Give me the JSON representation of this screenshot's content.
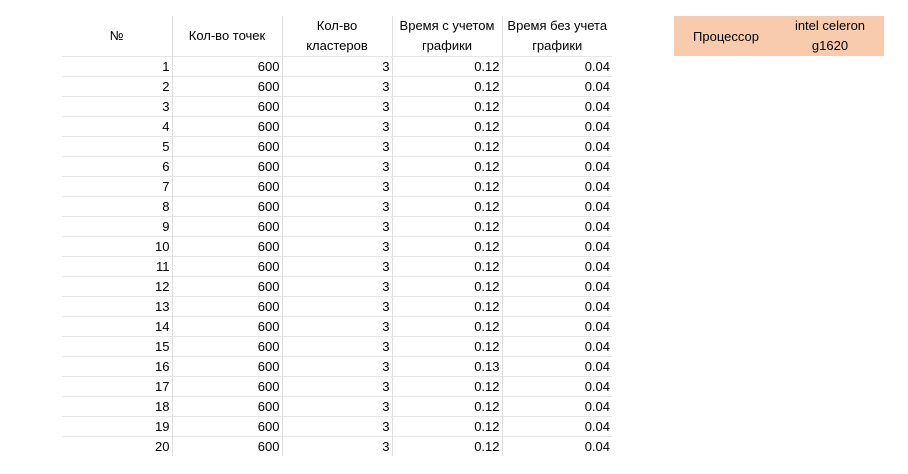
{
  "table": {
    "headers": [
      "№",
      "Кол-во точек",
      "Кол-во кластеров",
      "Время с учетом графики",
      "Время без учета графики"
    ],
    "rows": [
      [
        "1",
        "600",
        "3",
        "0.12",
        "0.04"
      ],
      [
        "2",
        "600",
        "3",
        "0.12",
        "0.04"
      ],
      [
        "3",
        "600",
        "3",
        "0.12",
        "0.04"
      ],
      [
        "4",
        "600",
        "3",
        "0.12",
        "0.04"
      ],
      [
        "5",
        "600",
        "3",
        "0.12",
        "0.04"
      ],
      [
        "6",
        "600",
        "3",
        "0.12",
        "0.04"
      ],
      [
        "7",
        "600",
        "3",
        "0.12",
        "0.04"
      ],
      [
        "8",
        "600",
        "3",
        "0.12",
        "0.04"
      ],
      [
        "9",
        "600",
        "3",
        "0.12",
        "0.04"
      ],
      [
        "10",
        "600",
        "3",
        "0.12",
        "0.04"
      ],
      [
        "11",
        "600",
        "3",
        "0.12",
        "0.04"
      ],
      [
        "12",
        "600",
        "3",
        "0.12",
        "0.04"
      ],
      [
        "13",
        "600",
        "3",
        "0.12",
        "0.04"
      ],
      [
        "14",
        "600",
        "3",
        "0.12",
        "0.04"
      ],
      [
        "15",
        "600",
        "3",
        "0.12",
        "0.04"
      ],
      [
        "16",
        "600",
        "3",
        "0.13",
        "0.04"
      ],
      [
        "17",
        "600",
        "3",
        "0.12",
        "0.04"
      ],
      [
        "18",
        "600",
        "3",
        "0.12",
        "0.04"
      ],
      [
        "19",
        "600",
        "3",
        "0.12",
        "0.04"
      ],
      [
        "20",
        "600",
        "3",
        "0.12",
        "0.04"
      ]
    ]
  },
  "processor": {
    "label": "Процессор",
    "value": "intel celeron g1620",
    "fill_color": "#f8cbad"
  }
}
